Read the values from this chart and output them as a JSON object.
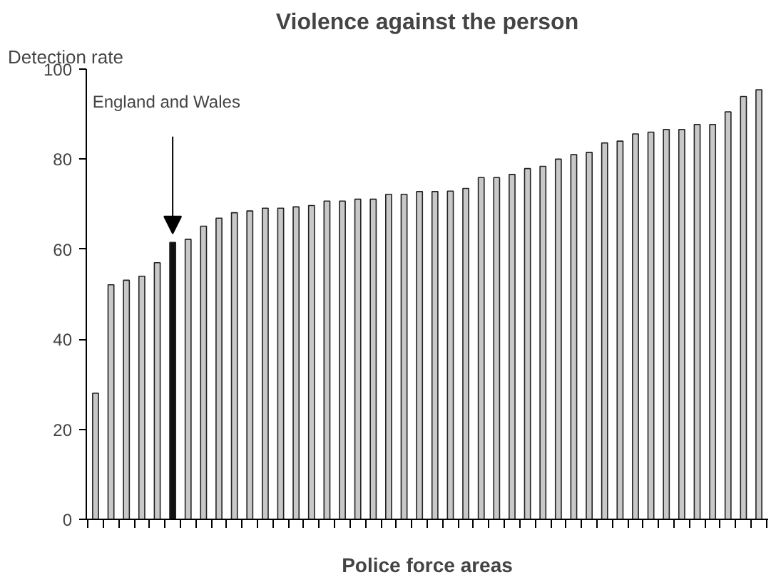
{
  "chart_data": {
    "type": "bar",
    "title": "Violence against the person",
    "xlabel": "Police force areas",
    "ylabel": "Detection rate",
    "categories": [
      null,
      null,
      null,
      null,
      null,
      null,
      null,
      null,
      null,
      null,
      null,
      null,
      null,
      null,
      null,
      null,
      null,
      null,
      null,
      null,
      null,
      null,
      null,
      null,
      null,
      null,
      null,
      null,
      null,
      null,
      null,
      null,
      null,
      null,
      null,
      null,
      null,
      null,
      null,
      null,
      null,
      null,
      null,
      null
    ],
    "values": [
      28,
      52.1,
      53.1,
      54,
      57,
      61.5,
      62.2,
      65.1,
      66.9,
      68.1,
      68.5,
      69.1,
      69.1,
      69.4,
      69.7,
      70.7,
      70.7,
      71.1,
      71.1,
      72.2,
      72.2,
      72.8,
      72.8,
      72.9,
      73.5,
      75.9,
      75.9,
      76.6,
      77.9,
      78.4,
      80,
      81,
      81.5,
      83.6,
      84,
      85.6,
      86,
      86.6,
      86.6,
      87.7,
      87.7,
      90.5,
      93.9,
      95.4
    ],
    "colors": [
      "#c8c8c8",
      "#c8c8c8",
      "#c8c8c8",
      "#c8c8c8",
      "#c8c8c8",
      "#111111",
      "#c8c8c8",
      "#c8c8c8",
      "#c8c8c8",
      "#c8c8c8",
      "#c8c8c8",
      "#c8c8c8",
      "#c8c8c8",
      "#c8c8c8",
      "#c8c8c8",
      "#c8c8c8",
      "#c8c8c8",
      "#c8c8c8",
      "#c8c8c8",
      "#c8c8c8",
      "#c8c8c8",
      "#c8c8c8",
      "#c8c8c8",
      "#c8c8c8",
      "#c8c8c8",
      "#c8c8c8",
      "#c8c8c8",
      "#c8c8c8",
      "#c8c8c8",
      "#c8c8c8",
      "#c8c8c8",
      "#c8c8c8",
      "#c8c8c8",
      "#c8c8c8",
      "#c8c8c8",
      "#c8c8c8",
      "#c8c8c8",
      "#c8c8c8",
      "#c8c8c8",
      "#c8c8c8",
      "#c8c8c8",
      "#c8c8c8",
      "#c8c8c8",
      "#c8c8c8"
    ],
    "annotations": [
      "England and Wales"
    ],
    "ylim": [
      0,
      100
    ],
    "yticks": [
      0,
      20,
      40,
      60,
      80,
      100
    ],
    "grid": false
  }
}
